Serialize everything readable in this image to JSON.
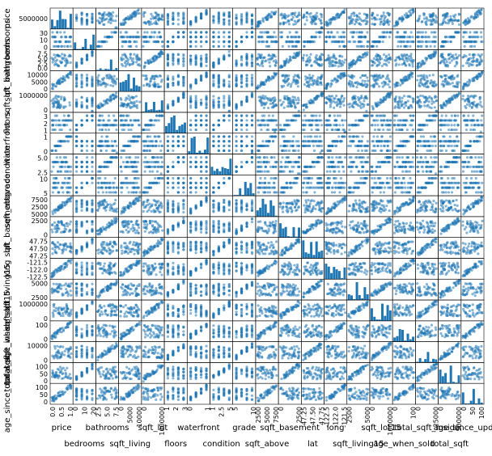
{
  "chart_data": {
    "type": "scatter",
    "kind": "scatter-matrix",
    "point_color": "#1f77b4",
    "diagonal": "histogram",
    "variables": [
      "price",
      "bedrooms",
      "bathrooms",
      "sqft_living",
      "sqft_lot",
      "floors",
      "waterfront",
      "condition",
      "grade",
      "sqft_above",
      "sqft_basement",
      "lat",
      "long",
      "sqft_living15",
      "sqft_lot15",
      "age_when_sold",
      "total_sqft_inside",
      "total_sqft",
      "age_since_updated"
    ],
    "row_labels": [
      "price",
      "bedrooms",
      "bathrooms",
      "sqft_living",
      "sqft_lot",
      "floors",
      "waterfront",
      "condition",
      "grade",
      "sqft_above",
      "sqft_basement",
      "lat",
      "long",
      "sqft_living15",
      "sqft_lot15",
      "age_when_sold",
      "total_sqft_inside",
      "total_sqft",
      "age_since_updated"
    ],
    "col_labels": [
      "price",
      "bedrooms",
      "bathrooms",
      "sqft_living",
      "sqft_lot",
      "floors",
      "waterfront",
      "condition",
      "grade",
      "sqft_above",
      "sqft_basement",
      "lat",
      "long",
      "sqft_living15",
      "sqft_lot15",
      "age_when_sold",
      "total_sqft_inside",
      "total_sqft",
      "age_since_updated"
    ],
    "y_ticks": [
      [
        "5000000"
      ],
      [
        "0",
        "10",
        "30"
      ],
      [
        "0.0",
        "2.5",
        "5.0",
        "7.5"
      ],
      [
        "0",
        "5000",
        "10000"
      ],
      [
        "0",
        "1000000"
      ],
      [
        "1",
        "2",
        "3"
      ],
      [
        "0",
        "1"
      ],
      [
        "2.5",
        "5.0"
      ],
      [
        "5",
        "10"
      ],
      [
        "5000",
        "2500",
        "7500"
      ],
      [
        "0",
        "2500"
      ],
      [
        "47.25",
        "47.50",
        "47.75"
      ],
      [
        "-122.5",
        "-122.0",
        "-121.5"
      ],
      [
        "2500",
        "5000"
      ],
      [
        "0",
        "1000000"
      ],
      [
        "0",
        "100"
      ],
      [
        "0",
        "10000"
      ],
      [
        "0",
        "50",
        "100"
      ],
      [
        "0",
        "50",
        "100"
      ]
    ],
    "x_ticks": [
      [
        "0.0",
        "0.5",
        "1.0"
      ],
      [
        "0",
        "10",
        "20"
      ],
      [
        "2.5",
        "5.0",
        "7.5"
      ],
      [
        "0",
        "5000",
        "10000"
      ],
      [
        "0",
        "1000000"
      ],
      [
        "1",
        "2",
        "3"
      ],
      [
        "0",
        "1"
      ],
      [
        "1",
        "2.5",
        "5"
      ],
      [
        "5",
        "10"
      ],
      [
        "2500",
        "5000",
        "7500"
      ],
      [
        "0",
        "2500"
      ],
      [
        "47.25",
        "47.50",
        "47.75"
      ],
      [
        "-122.5",
        "-122.0",
        "-121.5"
      ],
      [
        "2500",
        "5000"
      ],
      [
        "0",
        "1000000"
      ],
      [
        "0",
        "100"
      ],
      [
        "0",
        "25000"
      ],
      [
        "0",
        "500000"
      ],
      [
        "0",
        "50",
        "100"
      ]
    ]
  }
}
